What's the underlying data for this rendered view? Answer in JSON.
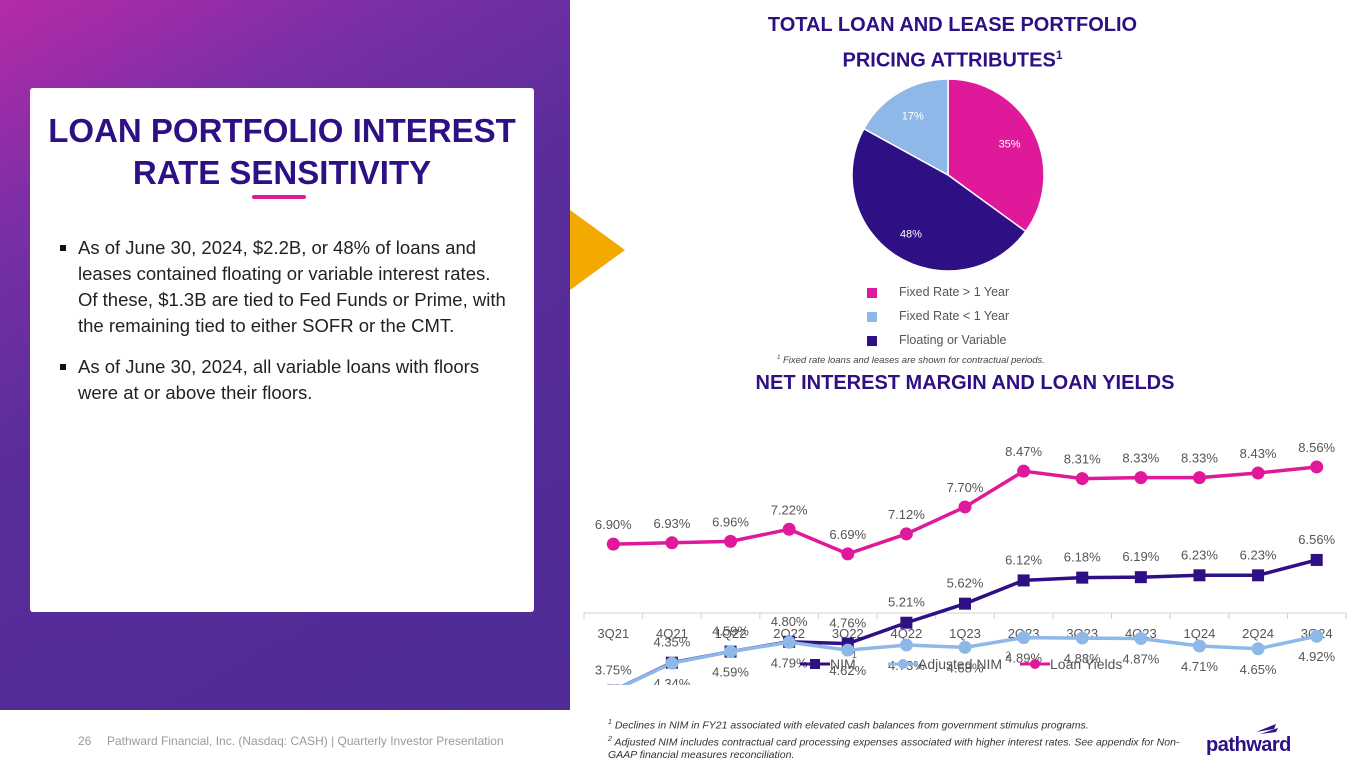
{
  "left": {
    "title_line1": "LOAN PORTFOLIO INTEREST",
    "title_line2": "RATE SENSITIVITY",
    "bullets": [
      "As of June 30, 2024, $2.2B, or 48% of loans and leases contained floating or variable interest rates. Of these, $1.3B are tied to Fed Funds or Prime, with the remaining tied to either SOFR or the CMT.",
      "As of June 30, 2024, all variable loans with floors were at or above their floors."
    ]
  },
  "footer": {
    "page_number": "26",
    "company": "Pathward Financial, Inc. (Nasdaq: CASH) | Quarterly Investor Presentation",
    "footnote_1": "Declines in NIM in FY21 associated with elevated cash balances from government stimulus programs.",
    "footnote_2": "Adjusted NIM includes contractual card processing expenses associated with higher interest rates. See appendix for Non-GAAP financial measures reconciliation.",
    "logo_text": "pathward"
  },
  "colors": {
    "brand_purple": "#2e0f84",
    "brand_magenta": "#e0189a",
    "light_blue": "#8db8e8",
    "accent_gold": "#f2a900"
  },
  "chart_data": [
    {
      "type": "pie",
      "title_line1": "TOTAL LOAN AND LEASE PORTFOLIO",
      "title_line2": "PRICING ATTRIBUTES",
      "title_sup": "1",
      "slices": [
        {
          "label": "Fixed Rate > 1 Year",
          "value": 35,
          "text": "35%",
          "color": "#e0189a"
        },
        {
          "label": "Floating or Variable",
          "value": 48,
          "text": "48%",
          "color": "#2e0f84"
        },
        {
          "label": "Fixed Rate < 1 Year",
          "value": 17,
          "text": "17%",
          "color": "#8db8e8"
        }
      ],
      "legend": [
        {
          "label": "Fixed Rate > 1 Year",
          "color": "#e0189a"
        },
        {
          "label": "Fixed Rate < 1 Year",
          "color": "#8db8e8"
        },
        {
          "label": "Floating or Variable",
          "color": "#2e0f84"
        }
      ],
      "footnote_sup": "1",
      "footnote": "Fixed rate loans and leases are shown for contractual periods."
    },
    {
      "type": "line",
      "title": "NET INTEREST MARGIN AND LOAN YIELDS",
      "categories": [
        "3Q21",
        "4Q21",
        "1Q22",
        "2Q22",
        "3Q22",
        "4Q22",
        "1Q23",
        "2Q23",
        "3Q23",
        "4Q23",
        "1Q24",
        "2Q24",
        "3Q24"
      ],
      "series": [
        {
          "name": "NIM",
          "sup": "1",
          "color": "#2e0f84",
          "marker": "square",
          "values": [
            3.75,
            4.35,
            4.59,
            4.8,
            4.76,
            5.21,
            5.62,
            6.12,
            6.18,
            6.19,
            6.23,
            6.23,
            6.56
          ],
          "labels": [
            "3.75%",
            "4.35%",
            "4.59%",
            "4.80%",
            "4.76%",
            "5.21%",
            "5.62%",
            "6.12%",
            "6.18%",
            "6.19%",
            "6.23%",
            "6.23%",
            "6.56%"
          ]
        },
        {
          "name": "Adjusted NIM",
          "sup": "2",
          "color": "#8db8e8",
          "marker": "circle",
          "values": [
            3.75,
            4.34,
            4.59,
            4.79,
            4.62,
            4.73,
            4.68,
            4.89,
            4.88,
            4.87,
            4.71,
            4.65,
            4.92
          ],
          "labels": [
            "3.75%",
            "4.34%",
            "4.59%",
            "4.79%",
            "4.62%",
            "4.73%",
            "4.68%",
            "4.89%",
            "4.88%",
            "4.87%",
            "4.71%",
            "4.65%",
            "4.92%"
          ]
        },
        {
          "name": "Loan Yields",
          "sup": "",
          "color": "#e0189a",
          "marker": "circle",
          "values": [
            6.9,
            6.93,
            6.96,
            7.22,
            6.69,
            7.12,
            7.7,
            8.47,
            8.31,
            8.33,
            8.33,
            8.43,
            8.56
          ],
          "labels": [
            "6.90%",
            "6.93%",
            "6.96%",
            "7.22%",
            "6.69%",
            "7.12%",
            "7.70%",
            "8.47%",
            "8.31%",
            "8.33%",
            "8.33%",
            "8.43%",
            "8.56%"
          ]
        }
      ],
      "ylim": [
        0,
        10
      ],
      "legend_position": "bottom"
    }
  ]
}
